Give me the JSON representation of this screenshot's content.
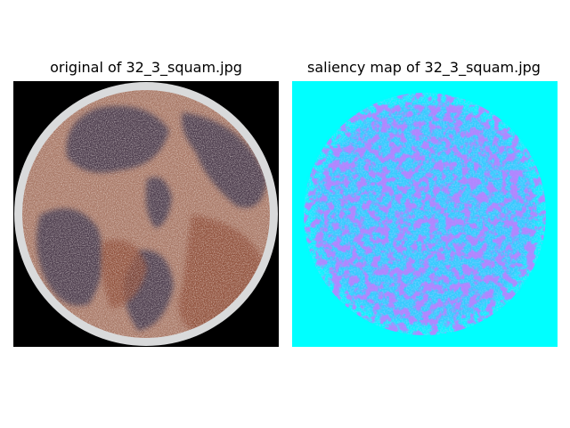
{
  "figure": {
    "panels": [
      {
        "title": "original of 32_3_squam.jpg",
        "colors": {
          "background": "#000000",
          "rim": "#d9dadb",
          "tissue_light": "#a87866",
          "tissue_dark": "#4e3d4d",
          "stroma_red": "#8a4630",
          "speckle": "#e6d2c8"
        }
      },
      {
        "title": "saliency map of 32_3_squam.jpg",
        "colors": {
          "background": "#00ffff",
          "inner": "#33ccff",
          "highlight": "#7a66ff",
          "hot": "#b44dff"
        }
      }
    ]
  }
}
